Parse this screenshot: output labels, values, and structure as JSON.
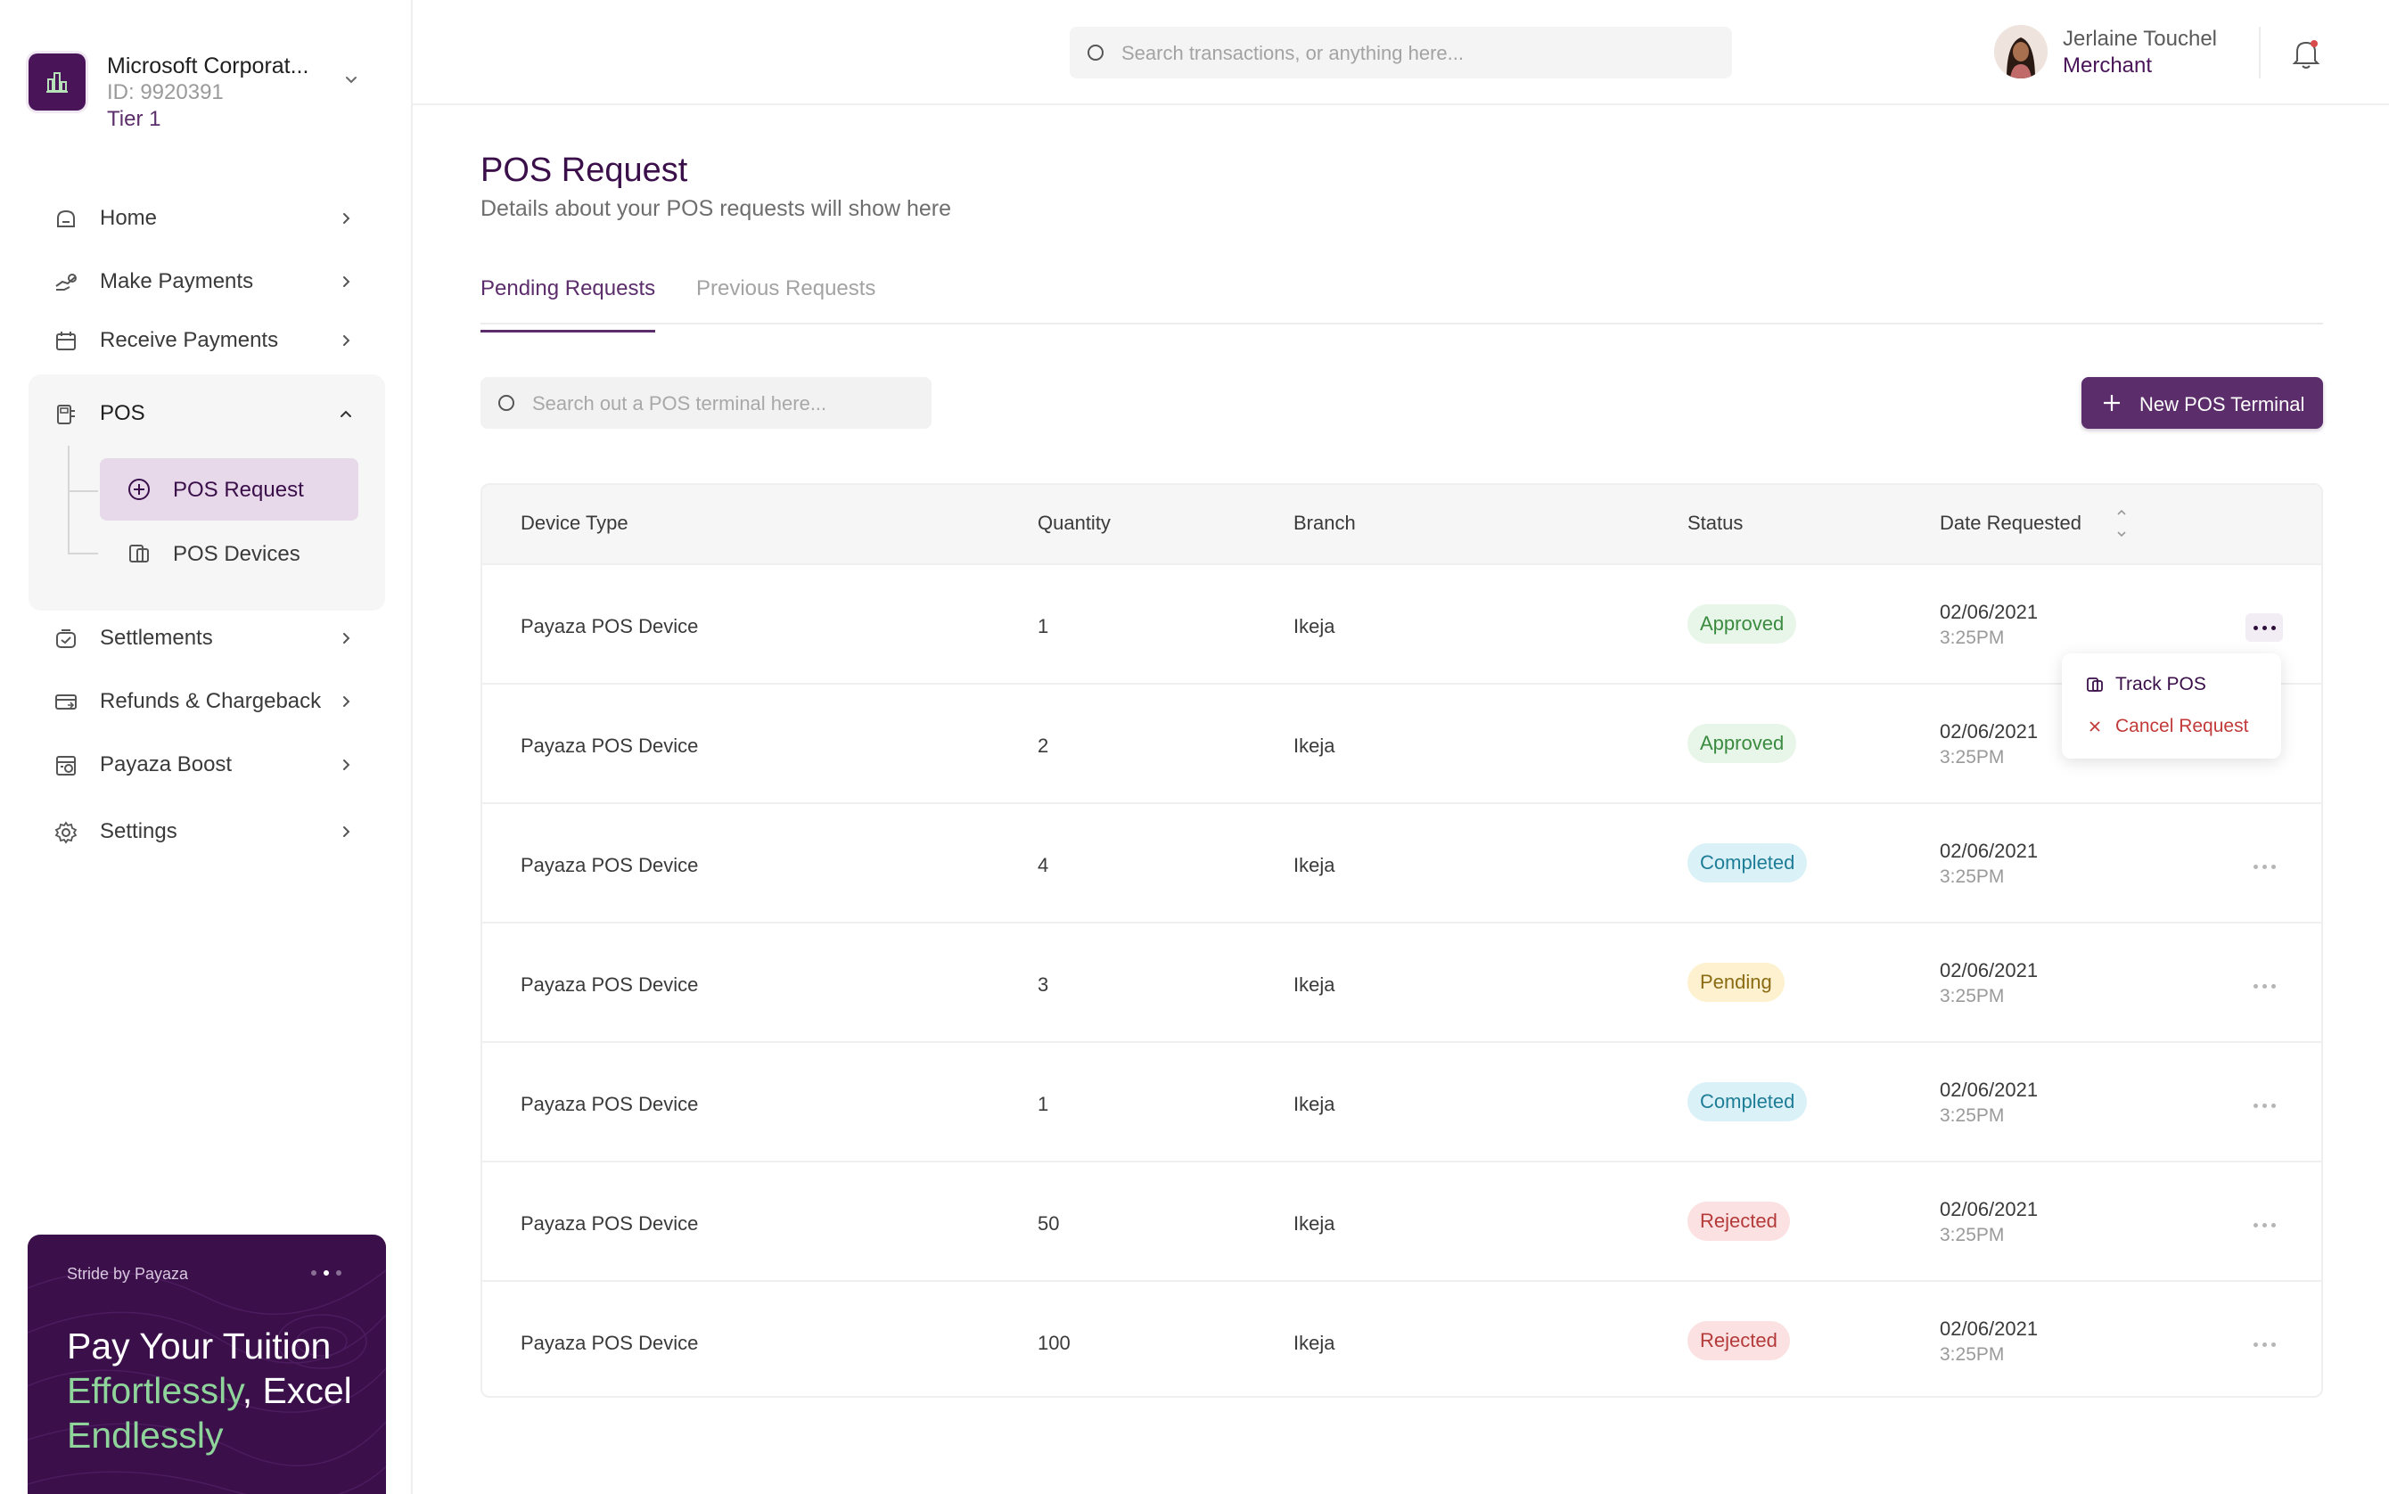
{
  "colors": {
    "brand": "#5c2d6b",
    "brand_dark": "#3a0f4a",
    "approved": "#3a8a3f",
    "completed": "#1e7d96",
    "pending": "#8a6a12",
    "rejected": "#b43a3a"
  },
  "org": {
    "name": "Microsoft Corporat...",
    "id": "ID: 9920391",
    "tier": "Tier 1"
  },
  "sidebar": {
    "items": [
      {
        "label": "Home",
        "icon": "home-icon"
      },
      {
        "label": "Make Payments",
        "icon": "send-money-icon"
      },
      {
        "label": "Receive Payments",
        "icon": "calendar-icon"
      },
      {
        "label": "POS",
        "icon": "pos-icon"
      },
      {
        "label": "Settlements",
        "icon": "settlement-icon"
      },
      {
        "label": "Refunds & Chargeback",
        "icon": "refund-icon"
      },
      {
        "label": "Payaza Boost",
        "icon": "boost-icon"
      },
      {
        "label": "Settings",
        "icon": "gear-icon"
      }
    ],
    "pos_sub": [
      {
        "label": "POS Request",
        "icon": "plus-circle-icon"
      },
      {
        "label": "POS Devices",
        "icon": "devices-icon"
      }
    ]
  },
  "promo": {
    "brand": "Stride by Payaza",
    "line1": "Pay Your Tuition",
    "line2a": "Effortlessly",
    "line2b": ", Excel",
    "line3": "Endlessly"
  },
  "topbar": {
    "search_placeholder": "Search transactions, or anything here...",
    "user_name": "Jerlaine Touchel",
    "user_role": "Merchant"
  },
  "page": {
    "title": "POS Request",
    "subtitle": "Details about your POS requests will show here"
  },
  "tabs": [
    {
      "label": "Pending Requests",
      "active": true
    },
    {
      "label": "Previous Requests",
      "active": false
    }
  ],
  "pos_search_placeholder": "Search out a POS terminal here...",
  "new_button": "New POS Terminal",
  "table": {
    "headers": {
      "device": "Device Type",
      "quantity": "Quantity",
      "branch": "Branch",
      "status": "Status",
      "date": "Date Requested"
    },
    "rows": [
      {
        "device": "Payaza POS Device",
        "quantity": "1",
        "branch": "Ikeja",
        "status": "Approved",
        "date": "02/06/2021",
        "time": "3:25PM"
      },
      {
        "device": "Payaza POS Device",
        "quantity": "2",
        "branch": "Ikeja",
        "status": "Approved",
        "date": "02/06/2021",
        "time": "3:25PM"
      },
      {
        "device": "Payaza POS Device",
        "quantity": "4",
        "branch": "Ikeja",
        "status": "Completed",
        "date": "02/06/2021",
        "time": "3:25PM"
      },
      {
        "device": "Payaza POS Device",
        "quantity": "3",
        "branch": "Ikeja",
        "status": "Pending",
        "date": "02/06/2021",
        "time": "3:25PM"
      },
      {
        "device": "Payaza POS Device",
        "quantity": "1",
        "branch": "Ikeja",
        "status": "Completed",
        "date": "02/06/2021",
        "time": "3:25PM"
      },
      {
        "device": "Payaza POS Device",
        "quantity": "50",
        "branch": "Ikeja",
        "status": "Rejected",
        "date": "02/06/2021",
        "time": "3:25PM"
      },
      {
        "device": "Payaza POS Device",
        "quantity": "100",
        "branch": "Ikeja",
        "status": "Rejected",
        "date": "02/06/2021",
        "time": "3:25PM"
      }
    ]
  },
  "dropdown": {
    "track": "Track POS",
    "cancel": "Cancel Request"
  }
}
